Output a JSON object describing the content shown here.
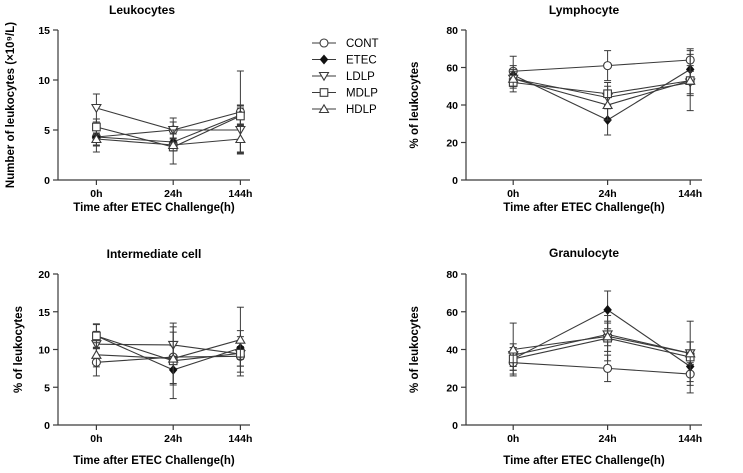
{
  "legend": {
    "entries": [
      {
        "name": "CONT",
        "marker": "circle-open"
      },
      {
        "name": "ETEC",
        "marker": "diamond-filled"
      },
      {
        "name": "LDLP",
        "marker": "triangle-down-open"
      },
      {
        "name": "MDLP",
        "marker": "square-open"
      },
      {
        "name": "HDLP",
        "marker": "triangle-up-open"
      }
    ]
  },
  "chart_data": [
    {
      "type": "line",
      "title": "Leukocytes",
      "xlabel": "Time after ETEC Challenge(h)",
      "ylabel": "Number of leukocytes (×10⁹/L)",
      "categories": [
        "0h",
        "24h",
        "144h"
      ],
      "ylim": [
        0,
        15
      ],
      "yticks": [
        0,
        5,
        10,
        15
      ],
      "series": [
        {
          "name": "CONT",
          "values": [
            4.3,
            5.0,
            6.8
          ],
          "err": [
            1.5,
            0.8,
            4.1
          ]
        },
        {
          "name": "ETEC",
          "values": [
            4.3,
            3.8,
            6.5
          ],
          "err": [
            0.9,
            0.8,
            1.0
          ]
        },
        {
          "name": "LDLP",
          "values": [
            7.2,
            5.0,
            5.0
          ],
          "err": [
            1.4,
            1.2,
            2.2
          ]
        },
        {
          "name": "MDLP",
          "values": [
            5.3,
            3.3,
            6.4
          ],
          "err": [
            0.8,
            1.7,
            1.0
          ]
        },
        {
          "name": "HDLP",
          "values": [
            4.1,
            3.5,
            4.1
          ],
          "err": [
            0.6,
            0.6,
            1.5
          ]
        }
      ]
    },
    {
      "type": "line",
      "title": "Lymphocyte",
      "xlabel": "Time after ETEC Challenge(h)",
      "ylabel": "% of leukocytes",
      "categories": [
        "0h",
        "24h",
        "144h"
      ],
      "ylim": [
        0,
        80
      ],
      "yticks": [
        0,
        20,
        40,
        60,
        80
      ],
      "series": [
        {
          "name": "CONT",
          "values": [
            58,
            61,
            64
          ],
          "err": [
            8,
            8,
            6
          ]
        },
        {
          "name": "ETEC",
          "values": [
            56,
            32,
            59
          ],
          "err": [
            5,
            8,
            8
          ]
        },
        {
          "name": "LDLP",
          "values": [
            54,
            44,
            52
          ],
          "err": [
            5,
            6,
            6
          ]
        },
        {
          "name": "MDLP",
          "values": [
            52,
            46,
            53
          ],
          "err": [
            5,
            6,
            16
          ]
        },
        {
          "name": "HDLP",
          "values": [
            54,
            40,
            53
          ],
          "err": [
            4,
            8,
            8
          ]
        }
      ]
    },
    {
      "type": "line",
      "title": "Intermediate cell",
      "xlabel": "Time after ETEC Challenge(h)",
      "ylabel": "% of leukocytes",
      "categories": [
        "0h",
        "24h",
        "144h"
      ],
      "ylim": [
        0,
        20
      ],
      "yticks": [
        0,
        5,
        10,
        15,
        20
      ],
      "series": [
        {
          "name": "CONT",
          "values": [
            8.3,
            9.0,
            9.1
          ],
          "err": [
            1.8,
            1.5,
            1.3
          ]
        },
        {
          "name": "ETEC",
          "values": [
            11.8,
            7.3,
            10.2
          ],
          "err": [
            1.6,
            1.8,
            1.5
          ]
        },
        {
          "name": "LDLP",
          "values": [
            10.7,
            10.6,
            9.4
          ],
          "err": [
            1.7,
            2.4,
            1.6
          ]
        },
        {
          "name": "MDLP",
          "values": [
            11.8,
            8.5,
            9.5
          ],
          "err": [
            1.5,
            5.0,
            3.0
          ]
        },
        {
          "name": "HDLP",
          "values": [
            9.3,
            8.8,
            11.3
          ],
          "err": [
            1.6,
            3.5,
            4.3
          ]
        }
      ]
    },
    {
      "type": "line",
      "title": "Granulocyte",
      "xlabel": "Time after ETEC Challenge(h)",
      "ylabel": "% of leukocytes",
      "categories": [
        "0h",
        "24h",
        "144h"
      ],
      "ylim": [
        0,
        80
      ],
      "yticks": [
        0,
        20,
        40,
        60,
        80
      ],
      "series": [
        {
          "name": "CONT",
          "values": [
            33,
            30,
            27
          ],
          "err": [
            6,
            7,
            6
          ]
        },
        {
          "name": "ETEC",
          "values": [
            35,
            61,
            31
          ],
          "err": [
            6,
            10,
            8
          ]
        },
        {
          "name": "LDLP",
          "values": [
            37,
            48,
            38
          ],
          "err": [
            6,
            6,
            6
          ]
        },
        {
          "name": "MDLP",
          "values": [
            35,
            46,
            36
          ],
          "err": [
            6,
            12,
            19
          ]
        },
        {
          "name": "HDLP",
          "values": [
            40,
            47,
            38
          ],
          "err": [
            14,
            8,
            6
          ]
        }
      ]
    }
  ]
}
